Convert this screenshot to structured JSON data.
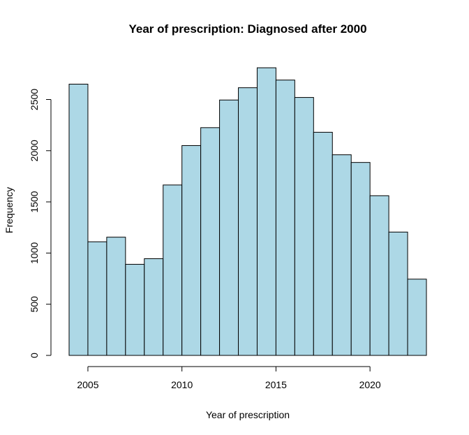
{
  "chart_data": {
    "type": "bar",
    "title": "Year of prescription: Diagnosed after 2000",
    "xlabel": "Year of prescription",
    "ylabel": "Frequency",
    "bin_edges": [
      2004,
      2005,
      2006,
      2007,
      2008,
      2009,
      2010,
      2011,
      2012,
      2013,
      2014,
      2015,
      2016,
      2017,
      2018,
      2019,
      2020,
      2021,
      2022,
      2023
    ],
    "values": [
      2650,
      1110,
      1155,
      890,
      945,
      1665,
      2050,
      2225,
      2495,
      2615,
      2810,
      2690,
      2520,
      2180,
      1960,
      1885,
      1560,
      1205,
      745
    ],
    "x_ticks": [
      2005,
      2010,
      2015,
      2020
    ],
    "y_ticks": [
      0,
      500,
      1000,
      1500,
      2000,
      2500
    ],
    "xlim": [
      2004,
      2023
    ],
    "ylim": [
      0,
      2810
    ],
    "bar_color": "#ADD8E6",
    "grid": false,
    "legend": "none"
  }
}
